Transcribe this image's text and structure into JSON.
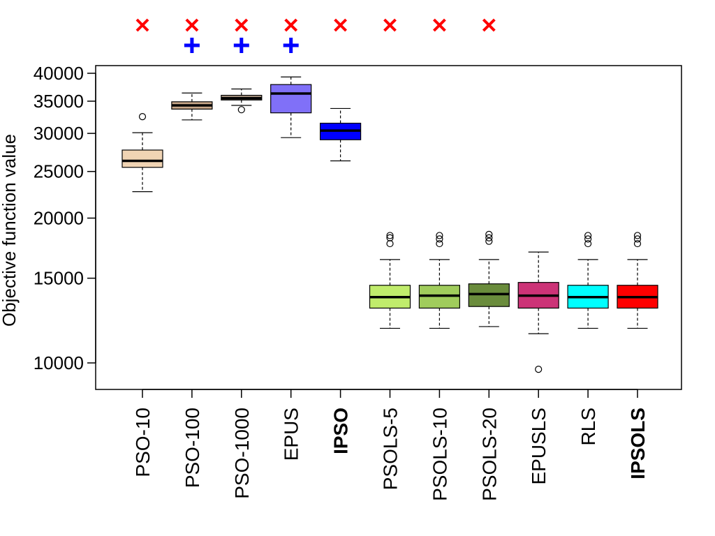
{
  "chart_data": {
    "type": "boxplot",
    "ylabel": "Objective function value",
    "y_scale": "log",
    "ylim": [
      8300,
      42500
    ],
    "y_ticks": [
      {
        "value": 10000,
        "label": "10000"
      },
      {
        "value": 15000,
        "label": "15000"
      },
      {
        "value": 20000,
        "label": "20000"
      },
      {
        "value": 25000,
        "label": "25000"
      },
      {
        "value": 30000,
        "label": "30000"
      },
      {
        "value": 35000,
        "label": "35000"
      },
      {
        "value": 40000,
        "label": "40000"
      }
    ],
    "series": [
      {
        "name": "PSO-10",
        "bold": false,
        "color": "#f0d4b4",
        "min": 22700,
        "q1": 25500,
        "median": 26300,
        "q3": 27700,
        "max": 30100,
        "outliers": [
          32500
        ],
        "marker_x": true,
        "marker_plus": false
      },
      {
        "name": "PSO-100",
        "bold": false,
        "color": "#c8a88a",
        "min": 32000,
        "q1": 33700,
        "median": 34300,
        "q3": 34900,
        "max": 36400,
        "outliers": [],
        "marker_x": true,
        "marker_plus": true
      },
      {
        "name": "PSO-1000",
        "bold": false,
        "color": "#a89480",
        "min": 34300,
        "q1": 35200,
        "median": 35500,
        "q3": 36000,
        "max": 37100,
        "outliers": [
          33600
        ],
        "marker_x": true,
        "marker_plus": true
      },
      {
        "name": "EPUS",
        "bold": false,
        "color": "#8070f8",
        "min": 29400,
        "q1": 33100,
        "median": 36300,
        "q3": 37900,
        "max": 39300,
        "outliers": [],
        "marker_x": true,
        "marker_plus": true
      },
      {
        "name": "IPSO",
        "bold": true,
        "color": "#0000ff",
        "min": 26300,
        "q1": 29100,
        "median": 30400,
        "q3": 31500,
        "max": 33800,
        "outliers": [],
        "marker_x": true,
        "marker_plus": false
      },
      {
        "name": "PSOLS-5",
        "bold": false,
        "color": "#c0ec6c",
        "min": 11800,
        "q1": 13000,
        "median": 13700,
        "q3": 14500,
        "max": 16400,
        "outliers": [
          17700,
          18200,
          18400
        ],
        "marker_x": true,
        "marker_plus": false
      },
      {
        "name": "PSOLS-10",
        "bold": false,
        "color": "#a0cc5c",
        "min": 11800,
        "q1": 13000,
        "median": 13800,
        "q3": 14500,
        "max": 16400,
        "outliers": [
          17700,
          18100,
          18400
        ],
        "marker_x": true,
        "marker_plus": false
      },
      {
        "name": "PSOLS-20",
        "bold": false,
        "color": "#6a8c3c",
        "min": 11900,
        "q1": 13100,
        "median": 13900,
        "q3": 14600,
        "max": 16400,
        "outliers": [
          17900,
          18200,
          18500
        ],
        "marker_x": true,
        "marker_plus": false
      },
      {
        "name": "EPUSLS",
        "bold": false,
        "color": "#cc3377",
        "min": 11500,
        "q1": 13000,
        "median": 13800,
        "q3": 14700,
        "max": 17000,
        "outliers": [
          9700
        ],
        "marker_x": false,
        "marker_plus": false
      },
      {
        "name": "RLS",
        "bold": false,
        "color": "#00ffff",
        "min": 11800,
        "q1": 13000,
        "median": 13700,
        "q3": 14500,
        "max": 16400,
        "outliers": [
          17700,
          18100,
          18400
        ],
        "marker_x": false,
        "marker_plus": false
      },
      {
        "name": "IPSOLS",
        "bold": true,
        "color": "#ff0000",
        "min": 11800,
        "q1": 13000,
        "median": 13700,
        "q3": 14500,
        "max": 16400,
        "outliers": [
          17700,
          18100,
          18400
        ],
        "marker_x": false,
        "marker_plus": false
      }
    ]
  }
}
